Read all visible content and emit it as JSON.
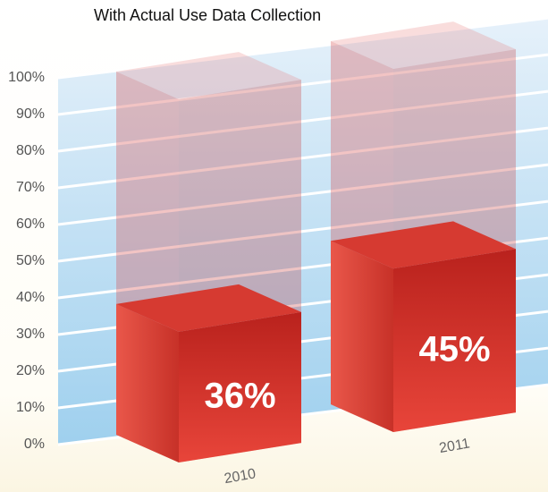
{
  "chart_data": {
    "type": "bar3d",
    "title": "With Actual Use Data Collection",
    "categories": [
      "2010",
      "2011"
    ],
    "values": [
      36,
      45
    ],
    "value_labels": [
      "36%",
      "45%"
    ],
    "color": "#d9302a",
    "ylim": [
      0,
      100
    ],
    "yticks": [
      {
        "value": 0,
        "label": "0%"
      },
      {
        "value": 10,
        "label": "10%"
      },
      {
        "value": 20,
        "label": "20%"
      },
      {
        "value": 30,
        "label": "30%"
      },
      {
        "value": 40,
        "label": "40%"
      },
      {
        "value": 50,
        "label": "50%"
      },
      {
        "value": 60,
        "label": "60%"
      },
      {
        "value": 70,
        "label": "70%"
      },
      {
        "value": 80,
        "label": "80%"
      },
      {
        "value": 90,
        "label": "90%"
      },
      {
        "value": 100,
        "label": "100%"
      }
    ],
    "grid": true
  }
}
